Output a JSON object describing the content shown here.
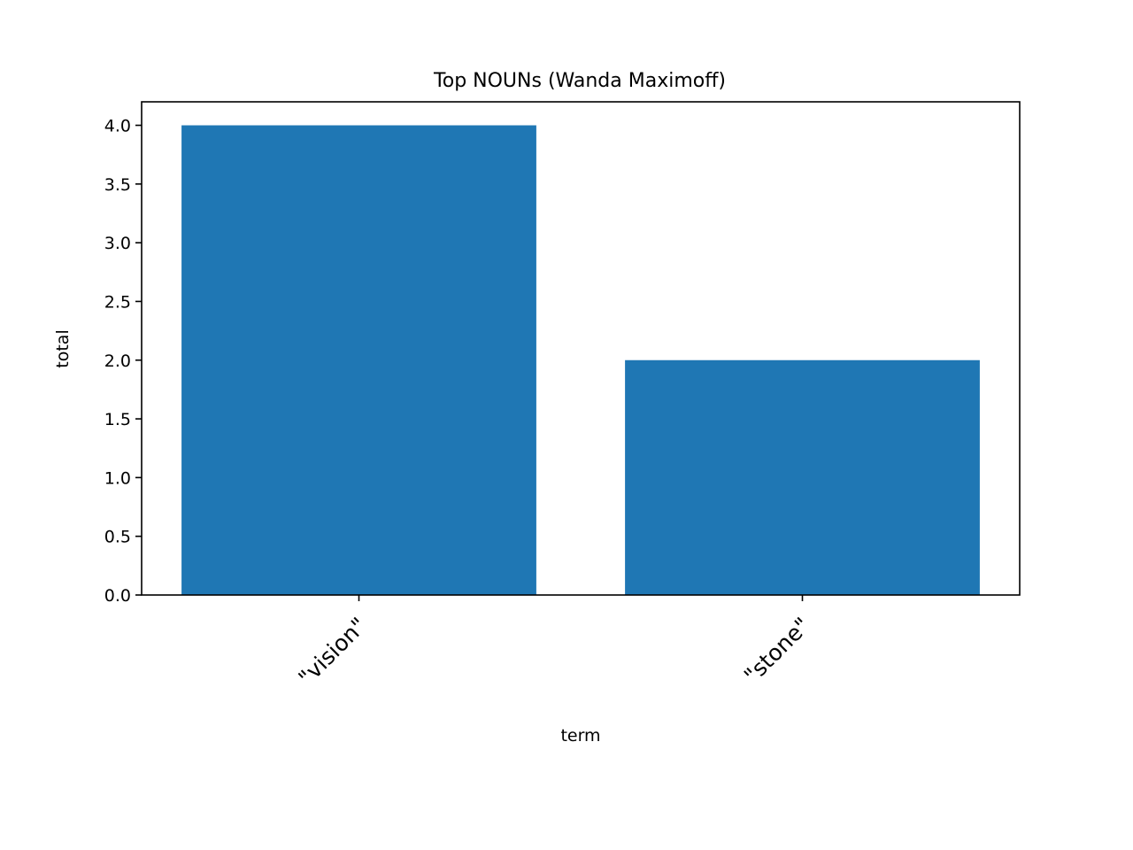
{
  "chart_data": {
    "type": "bar",
    "title": "Top NOUNs (Wanda Maximoff)",
    "xlabel": "term",
    "ylabel": "total",
    "categories": [
      "\"vision\"",
      "\"stone\""
    ],
    "values": [
      4,
      2
    ],
    "ylim": [
      0,
      4.2
    ],
    "yticks": [
      0,
      0.5,
      1,
      1.5,
      2,
      2.5,
      3,
      3.5,
      4
    ],
    "ytick_labels": [
      "0.0",
      "0.5",
      "1.0",
      "1.5",
      "2.0",
      "2.5",
      "3.0",
      "3.5",
      "4.0"
    ],
    "bar_color": "#1f77b4",
    "grid": false,
    "legend": false
  }
}
